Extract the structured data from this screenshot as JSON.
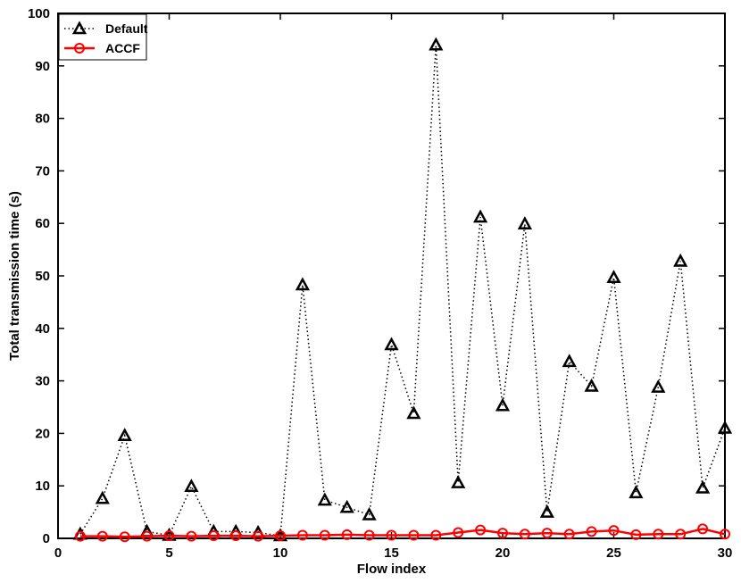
{
  "chart_data": {
    "type": "line",
    "title": "",
    "xlabel": "Flow index",
    "ylabel": "Total transmission time (s)",
    "xlim": [
      0,
      30
    ],
    "ylim": [
      0,
      100
    ],
    "xticks": [
      0,
      5,
      10,
      15,
      20,
      25,
      30
    ],
    "yticks": [
      0,
      10,
      20,
      30,
      40,
      50,
      60,
      70,
      80,
      90,
      100
    ],
    "grid": false,
    "legend_position": "top-left",
    "x": [
      1,
      2,
      3,
      4,
      5,
      6,
      7,
      8,
      9,
      10,
      11,
      12,
      13,
      14,
      15,
      16,
      17,
      18,
      19,
      20,
      21,
      22,
      23,
      24,
      25,
      26,
      27,
      28,
      29,
      30
    ],
    "series": [
      {
        "name": "Default",
        "color": "#000000",
        "line_style": "dotted",
        "marker": "triangle",
        "values": [
          0.8,
          7.6,
          19.6,
          1.3,
          0.6,
          9.9,
          1.3,
          1.3,
          1.1,
          0.5,
          48.3,
          7.3,
          5.9,
          4.5,
          36.9,
          23.8,
          94.0,
          10.6,
          61.2,
          25.3,
          59.9,
          5.0,
          33.7,
          29.0,
          49.7,
          8.7,
          28.8,
          52.8,
          9.6,
          21.0
        ]
      },
      {
        "name": "ACCF",
        "color": "#ff0000",
        "line_style": "solid",
        "marker": "circle",
        "values": [
          0.4,
          0.4,
          0.3,
          0.4,
          0.5,
          0.4,
          0.5,
          0.5,
          0.4,
          0.5,
          0.6,
          0.6,
          0.7,
          0.6,
          0.6,
          0.6,
          0.6,
          1.1,
          1.6,
          1.0,
          0.8,
          1.0,
          0.8,
          1.3,
          1.5,
          0.7,
          0.8,
          0.8,
          1.8,
          0.8
        ]
      }
    ]
  }
}
